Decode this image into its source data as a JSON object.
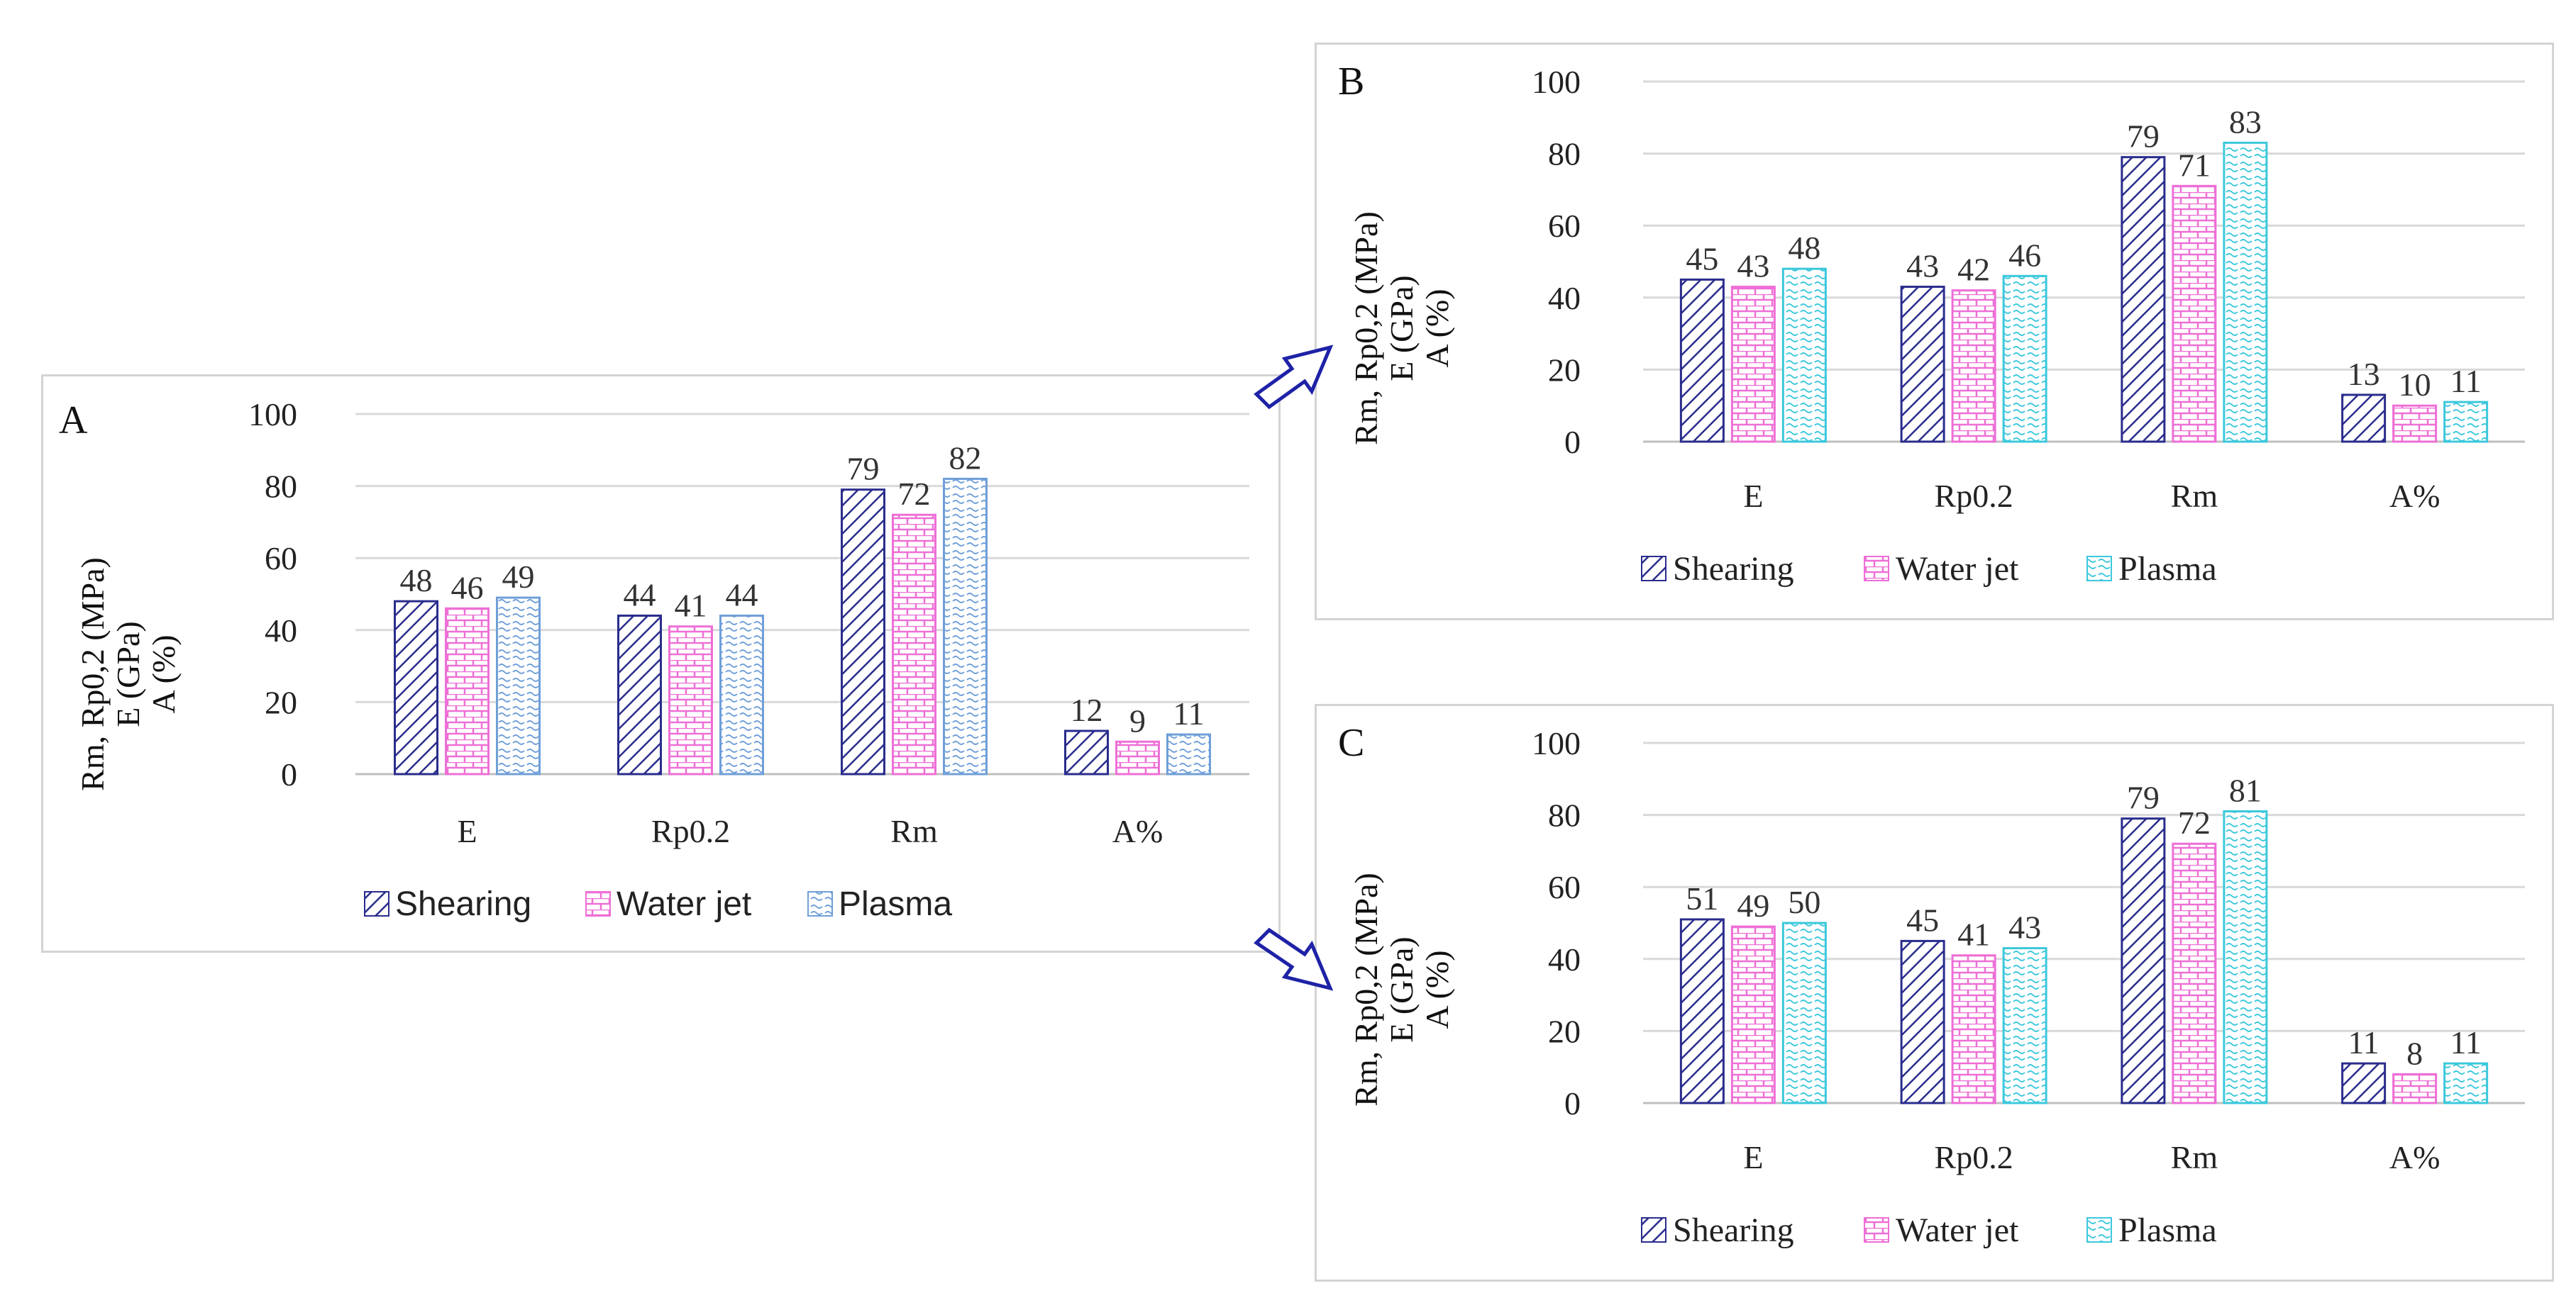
{
  "figure": {
    "series_names": [
      "Shearing",
      "Water jet",
      "Plasma"
    ],
    "y_axis_lines": [
      "Rm, Rp0,2 (MPa)",
      "E (GPa)",
      "A (%)"
    ]
  },
  "colors": {
    "shearing": "#2a2d8c",
    "water_jet": "#ee6fd6",
    "plasma_a": "#6f9fd8",
    "plasma_bc": "#3cc8dc",
    "grid": "#d9d9d9",
    "arrow": "#1e22a6"
  },
  "chart_data": [
    {
      "id": "A",
      "panel_label": "A",
      "type": "bar",
      "categories": [
        "E",
        "Rp0.2",
        "Rm",
        "A%"
      ],
      "series": [
        {
          "name": "Shearing",
          "values": [
            48,
            44,
            79,
            12
          ]
        },
        {
          "name": "Water jet",
          "values": [
            46,
            41,
            72,
            9
          ]
        },
        {
          "name": "Plasma",
          "values": [
            49,
            44,
            82,
            11
          ]
        }
      ],
      "ylabel_lines": [
        "Rm, Rp0,2 (MPa)",
        "E (GPa)",
        "A (%)"
      ],
      "ylim": [
        0,
        100
      ],
      "yticks": [
        "0",
        "20",
        "40",
        "60",
        "80",
        "100"
      ],
      "grid": true,
      "legend": "bottom"
    },
    {
      "id": "B",
      "panel_label": "B",
      "type": "bar",
      "categories": [
        "E",
        "Rp0.2",
        "Rm",
        "A%"
      ],
      "series": [
        {
          "name": "Shearing",
          "values": [
            45,
            43,
            79,
            13
          ]
        },
        {
          "name": "Water jet",
          "values": [
            43,
            42,
            71,
            10
          ]
        },
        {
          "name": "Plasma",
          "values": [
            48,
            46,
            83,
            11
          ]
        }
      ],
      "ylabel_lines": [
        "Rm, Rp0,2 (MPa)",
        "E (GPa)",
        "A (%)"
      ],
      "ylim": [
        0,
        100
      ],
      "yticks": [
        "0",
        "20",
        "40",
        "60",
        "80",
        "100"
      ],
      "grid": true,
      "legend": "bottom"
    },
    {
      "id": "C",
      "panel_label": "C",
      "type": "bar",
      "categories": [
        "E",
        "Rp0.2",
        "Rm",
        "A%"
      ],
      "series": [
        {
          "name": "Shearing",
          "values": [
            51,
            45,
            79,
            11
          ]
        },
        {
          "name": "Water jet",
          "values": [
            49,
            41,
            72,
            8
          ]
        },
        {
          "name": "Plasma",
          "values": [
            50,
            43,
            81,
            11
          ]
        }
      ],
      "ylabel_lines": [
        "Rm, Rp0,2 (MPa)",
        "E (GPa)",
        "A (%)"
      ],
      "ylim": [
        0,
        100
      ],
      "yticks": [
        "0",
        "20",
        "40",
        "60",
        "80",
        "100"
      ],
      "grid": true,
      "legend": "bottom"
    }
  ]
}
